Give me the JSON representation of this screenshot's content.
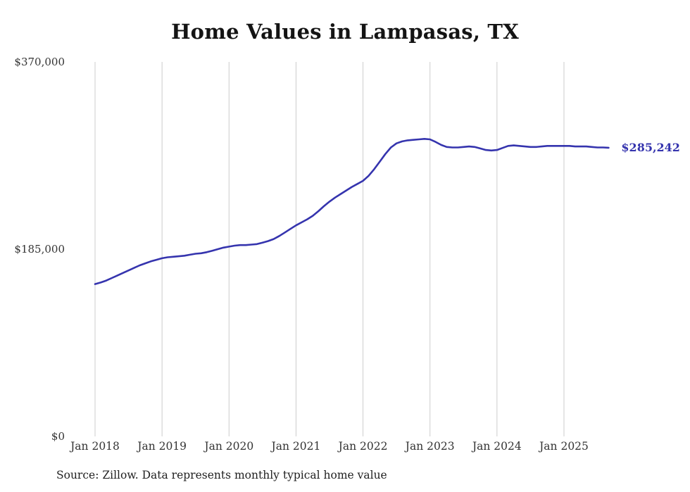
{
  "chart_data": {
    "type": "line",
    "title": "Home Values in Lampasas, TX",
    "xlabel": "",
    "ylabel": "",
    "ylim": [
      0,
      370000
    ],
    "y_ticks": [
      0,
      185000,
      370000
    ],
    "y_tick_labels": [
      "$0",
      "$185,000",
      "$370,000"
    ],
    "x_start": "Jan 2018",
    "x_interval": "month",
    "x_tick_labels": [
      "Jan 2018",
      "Jan 2019",
      "Jan 2020",
      "Jan 2021",
      "Jan 2022",
      "Jan 2023",
      "Jan 2024",
      "Jan 2025"
    ],
    "grid": "vertical",
    "legend": "none",
    "line_color": "#3534ae",
    "gridline_color": "#cccccc",
    "end_label": "$285,242",
    "end_value": 285242,
    "series": [
      {
        "name": "Typical home value",
        "color": "#3534ae",
        "values": [
          150500,
          152000,
          154000,
          156500,
          159000,
          161500,
          164000,
          166500,
          169000,
          171000,
          173000,
          174500,
          176000,
          177000,
          177500,
          178000,
          178500,
          179500,
          180500,
          181000,
          182000,
          183500,
          185000,
          186500,
          187500,
          188500,
          189000,
          189000,
          189500,
          190000,
          191500,
          193000,
          195000,
          198000,
          201500,
          205000,
          208500,
          211500,
          214500,
          218000,
          222500,
          227500,
          232000,
          236000,
          239500,
          243000,
          246500,
          249500,
          252500,
          257500,
          264000,
          271500,
          279000,
          285500,
          289500,
          291500,
          292500,
          293000,
          293500,
          294000,
          293500,
          291000,
          288000,
          286000,
          285500,
          285500,
          286000,
          286500,
          286000,
          284500,
          283000,
          282500,
          283000,
          285000,
          287000,
          287500,
          287000,
          286500,
          286000,
          286000,
          286500,
          287000,
          287000,
          287000,
          287000,
          287000,
          286500,
          286500,
          286500,
          286000,
          285500,
          285500,
          285242
        ]
      }
    ],
    "source_note": "Source: Zillow. Data represents monthly typical home value"
  }
}
